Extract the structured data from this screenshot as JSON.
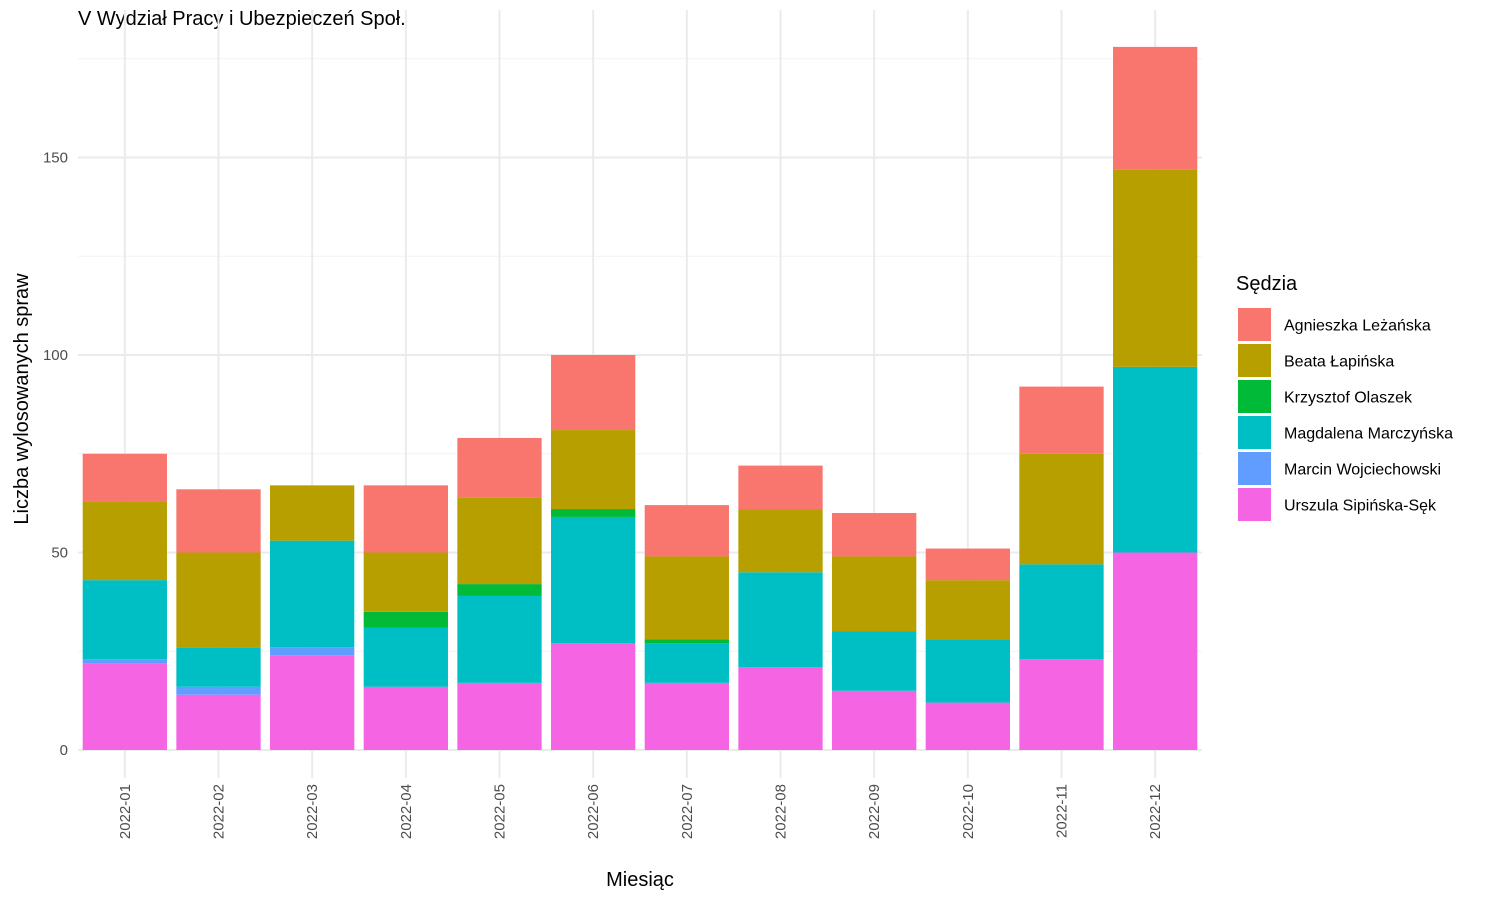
{
  "chart_data": {
    "type": "bar",
    "stacked": true,
    "title": "V Wydział Pracy i Ubezpieczeń Społ.",
    "xlabel": "Miesiąc",
    "ylabel": "Liczba wylosowanych spraw",
    "ylim": [
      0,
      185
    ],
    "yticks": [
      0,
      50,
      100,
      150
    ],
    "grid": true,
    "legend_title": "Sędzia",
    "legend_position": "right",
    "categories": [
      "2022-01",
      "2022-02",
      "2022-03",
      "2022-04",
      "2022-05",
      "2022-06",
      "2022-07",
      "2022-08",
      "2022-09",
      "2022-10",
      "2022-11",
      "2022-12"
    ],
    "series": [
      {
        "name": "Agnieszka Leżańska",
        "color": "#F8766D",
        "values": [
          12,
          16,
          0,
          17,
          15,
          19,
          13,
          11,
          11,
          8,
          17,
          31
        ]
      },
      {
        "name": "Beata Łapińska",
        "color": "#B79F00",
        "values": [
          20,
          24,
          14,
          15,
          22,
          20,
          21,
          16,
          19,
          15,
          28,
          50
        ]
      },
      {
        "name": "Krzysztof Olaszek",
        "color": "#00BA38",
        "values": [
          0,
          0,
          0,
          4,
          3,
          2,
          1,
          0,
          0,
          0,
          0,
          0
        ]
      },
      {
        "name": "Magdalena Marczyńska",
        "color": "#00BFC4",
        "values": [
          20,
          10,
          27,
          15,
          22,
          32,
          10,
          24,
          15,
          16,
          24,
          47
        ]
      },
      {
        "name": "Marcin Wojciechowski",
        "color": "#619CFF",
        "values": [
          1,
          2,
          2,
          0,
          0,
          0,
          0,
          0,
          0,
          0,
          0,
          0
        ]
      },
      {
        "name": "Urszula Sipińska-Sęk",
        "color": "#F564E3",
        "values": [
          22,
          14,
          24,
          16,
          17,
          27,
          17,
          21,
          15,
          12,
          23,
          50
        ]
      }
    ]
  }
}
